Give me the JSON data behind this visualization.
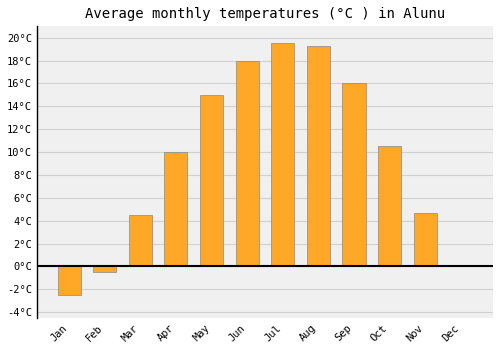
{
  "title": "Average monthly temperatures (°C ) in Alunu",
  "months": [
    "Jan",
    "Feb",
    "Mar",
    "Apr",
    "May",
    "Jun",
    "Jul",
    "Aug",
    "Sep",
    "Oct",
    "Nov",
    "Dec"
  ],
  "values": [
    -2.5,
    -0.5,
    4.5,
    10.0,
    15.0,
    18.0,
    19.5,
    19.3,
    16.0,
    10.5,
    4.7,
    0.0
  ],
  "bar_color": "#FFA828",
  "bar_edge_color": "#888888",
  "ylim": [
    -4.5,
    21
  ],
  "yticks": [
    -4,
    -2,
    0,
    2,
    4,
    6,
    8,
    10,
    12,
    14,
    16,
    18,
    20
  ],
  "ytick_labels": [
    "-4°C",
    "-2°C",
    "0°C",
    "2°C",
    "4°C",
    "6°C",
    "8°C",
    "10°C",
    "12°C",
    "14°C",
    "16°C",
    "18°C",
    "20°C"
  ],
  "background_color": "#ffffff",
  "plot_bg_color": "#f0f0f0",
  "grid_color": "#d0d0d0",
  "title_fontsize": 10,
  "tick_fontsize": 7.5,
  "zero_line_color": "#000000",
  "left_spine_color": "#000000"
}
